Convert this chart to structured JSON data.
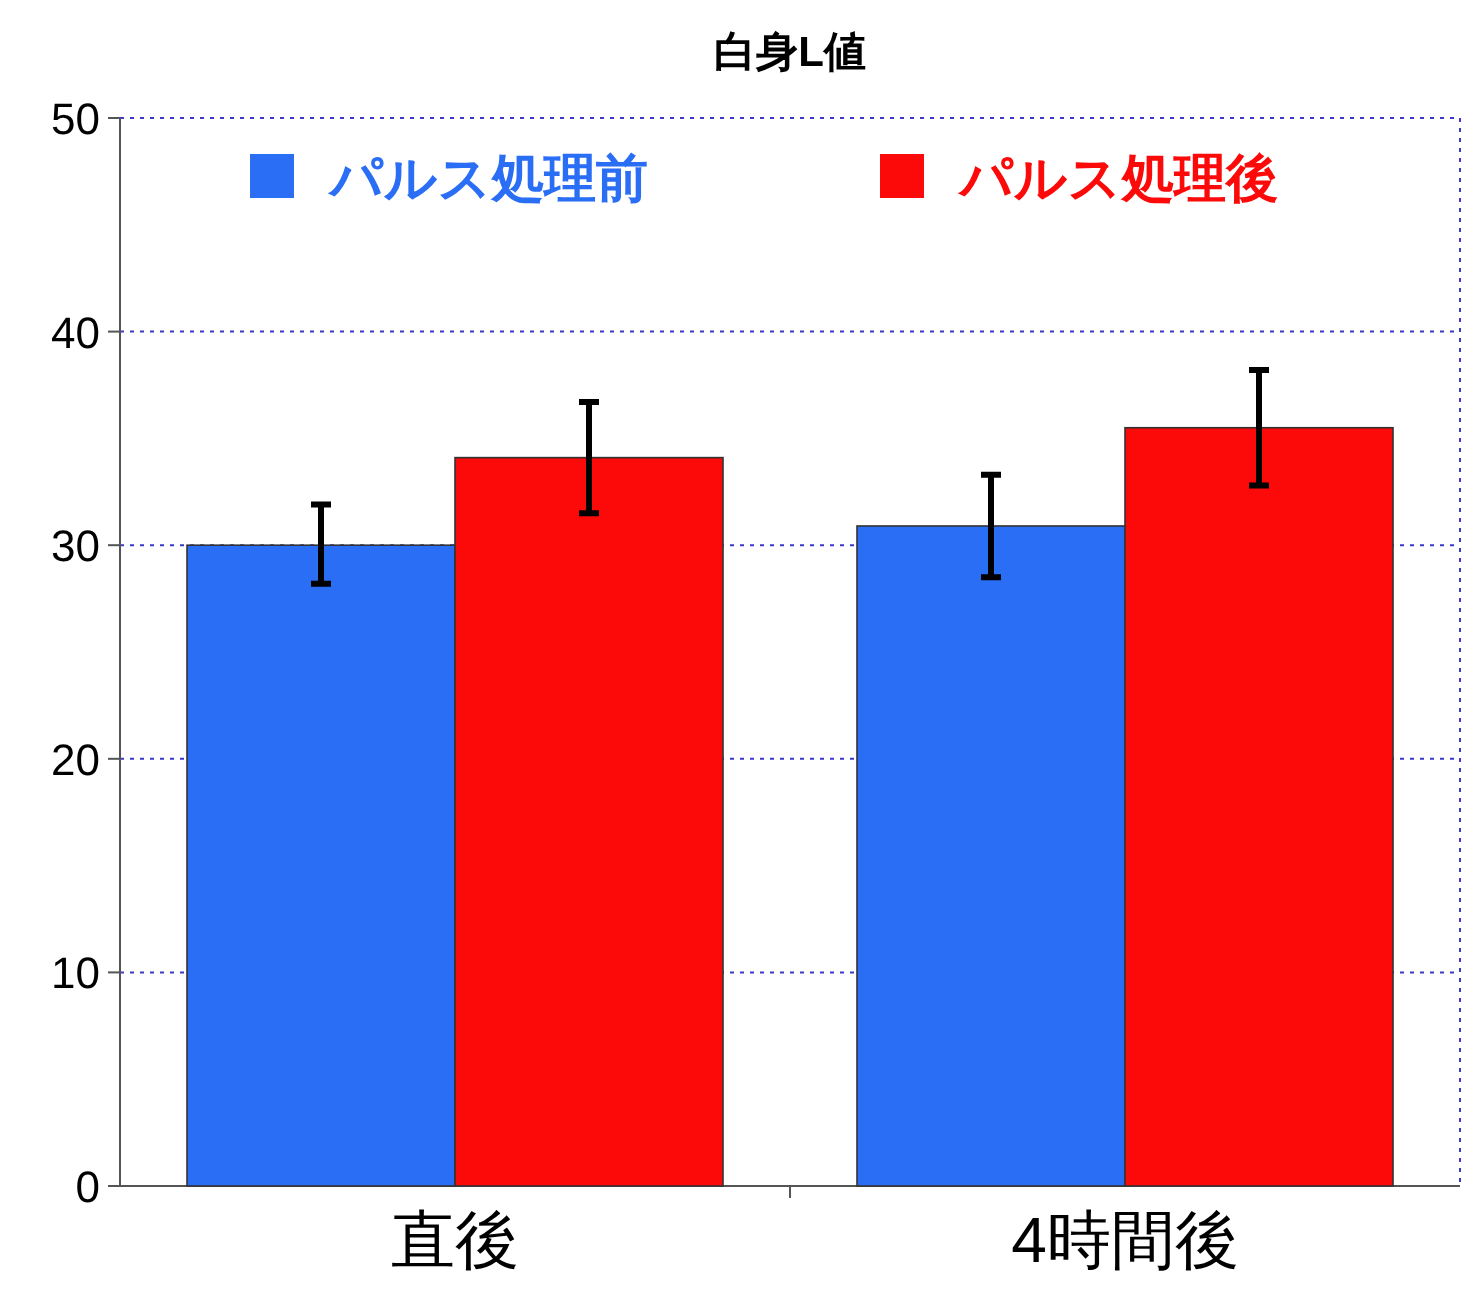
{
  "chart_data": {
    "type": "bar",
    "title": "白身L値",
    "categories": [
      "直後",
      "4時間後"
    ],
    "series": [
      {
        "name": "パルス処理前",
        "color": "#2a6ef5",
        "values": [
          30,
          30.9
        ],
        "errors": [
          [
            28.2,
            31.9
          ],
          [
            28.5,
            33.3
          ]
        ]
      },
      {
        "name": "パルス処理後",
        "color": "#fc0a0a",
        "values": [
          34.1,
          35.5
        ],
        "errors": [
          [
            31.5,
            36.7
          ],
          [
            32.8,
            38.2
          ]
        ]
      }
    ],
    "ylim": [
      0,
      50
    ],
    "yticks": [
      0,
      10,
      20,
      30,
      40,
      50
    ],
    "grid": "y",
    "legend": "top"
  }
}
